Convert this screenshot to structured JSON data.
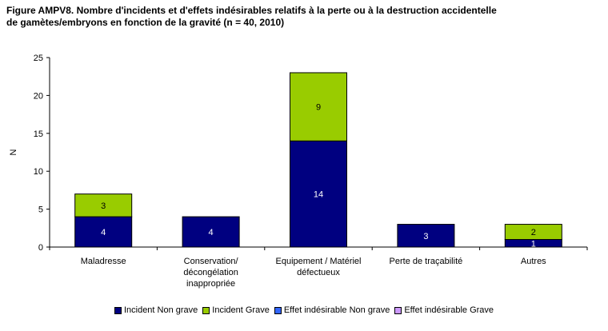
{
  "title": {
    "line1": "Figure AMPV8. Nombre d'incidents et d'effets indésirables relatifs à la perte ou à la destruction accidentelle",
    "line2": "de gamètes/embryons en fonction de la gravité (n = 40, 2010)"
  },
  "chart_data": {
    "type": "bar",
    "stacked": true,
    "ylabel": "N",
    "xlabel": "",
    "ylim": [
      0,
      25
    ],
    "yticks": [
      0,
      5,
      10,
      15,
      20,
      25
    ],
    "grid": false,
    "legend_position": "bottom",
    "categories": [
      [
        "Maladresse"
      ],
      [
        "Conservation/",
        "décongélation",
        "inappropriée"
      ],
      [
        "Equipement / Matériel",
        "défectueux"
      ],
      [
        "Perte de traçabilité"
      ],
      [
        "Autres"
      ]
    ],
    "series": [
      {
        "name": "Incident Non grave",
        "color": "#000080",
        "values": [
          4,
          4,
          14,
          3,
          1
        ]
      },
      {
        "name": "Incident Grave",
        "color": "#99cc00",
        "values": [
          3,
          0,
          9,
          0,
          2
        ]
      },
      {
        "name": "Effet indésirable Non grave",
        "color": "#3366ff",
        "values": [
          0,
          0,
          0,
          0,
          0
        ]
      },
      {
        "name": "Effet indésirable Grave",
        "color": "#cc99ff",
        "values": [
          0,
          0,
          0,
          0,
          0
        ]
      }
    ]
  }
}
